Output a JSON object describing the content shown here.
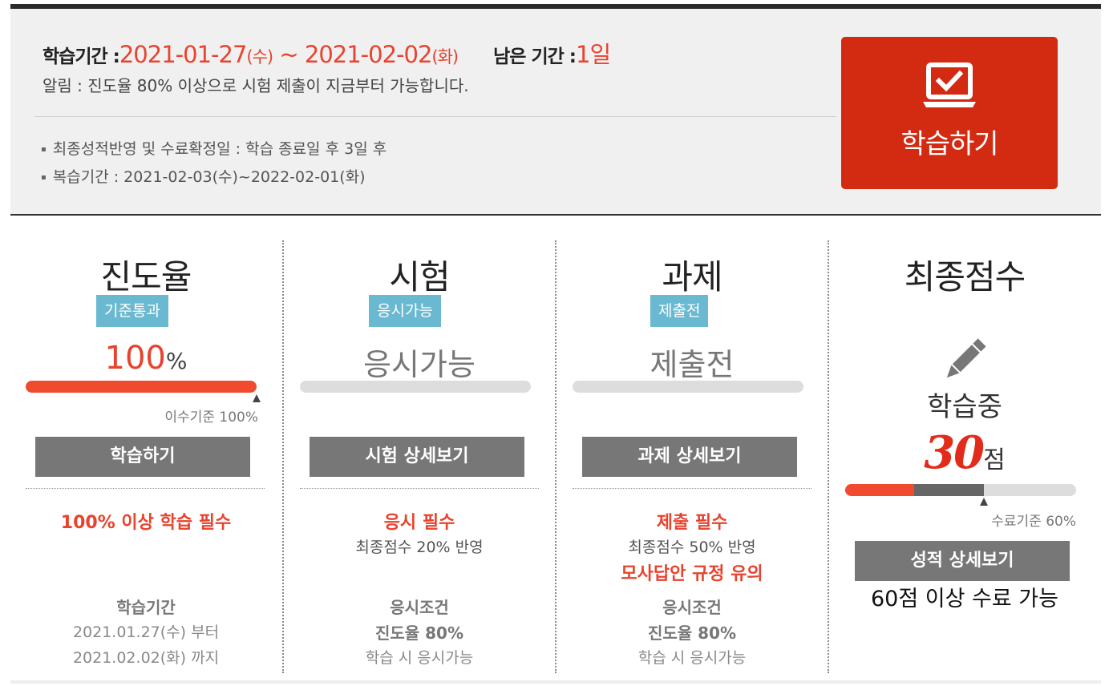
{
  "header": {
    "period_label": "학습기간 :",
    "period_start": "2021-01-27",
    "period_start_day": "(수)",
    "period_sep": "~",
    "period_end": "2021-02-02",
    "period_end_day": "(화)",
    "remaining_label": "남은 기간 :",
    "remaining_value": "1일",
    "notice": "알림 : 진도율 80% 이상으로 시험 제출이 지금부터 가능합니다.",
    "bullets": [
      "최종성적반영 및 수료확정일 : 학습 종료일 후 3일 후",
      "복습기간 : 2021-02-03(수)~2022-02-01(화)"
    ],
    "study_button_label": "학습하기"
  },
  "progress": {
    "title": "진도율",
    "badge": "기준통과",
    "value": "100",
    "unit": "%",
    "fill_fraction": 1.0,
    "criteria": "이수기준 100%",
    "button": "학습하기",
    "requirement": "100% 이상 학습 필수",
    "period_title": "학습기간",
    "period_from": "2021.01.27(수) 부터",
    "period_to": "2021.02.02(화) 까지"
  },
  "exam": {
    "title": "시험",
    "badge": "응시가능",
    "status": "응시가능",
    "fill_fraction": 0,
    "button": "시험 상세보기",
    "requirement": "응시 필수",
    "weight": "최종점수 20% 반영",
    "cond_title": "응시조건",
    "cond_value": "진도율 80%",
    "cond_note": "학습 시 응시가능"
  },
  "assignment": {
    "title": "과제",
    "badge": "제출전",
    "status": "제출전",
    "fill_fraction": 0,
    "button": "과제 상세보기",
    "requirement": "제출 필수",
    "weight": "최종점수 50% 반영",
    "warning": "모사답안 규정 유의",
    "cond_title": "응시조건",
    "cond_value": "진도율 80%",
    "cond_note": "학습 시 응시가능"
  },
  "final": {
    "title": "최종점수",
    "status": "학습중",
    "score": "30",
    "score_unit": "점",
    "score_fraction": 0.3,
    "pass_fraction": 0.6,
    "criteria": "수료기준 60%",
    "button": "성적 상세보기",
    "note": "60점 이상 수료 가능"
  },
  "colors": {
    "accent_red": "#e8432e",
    "button_red": "#d32a12",
    "badge_blue": "#6bb9d1",
    "button_gray": "#777777"
  },
  "icons": {
    "study": "laptop-check-icon",
    "final": "pencil-icon"
  }
}
